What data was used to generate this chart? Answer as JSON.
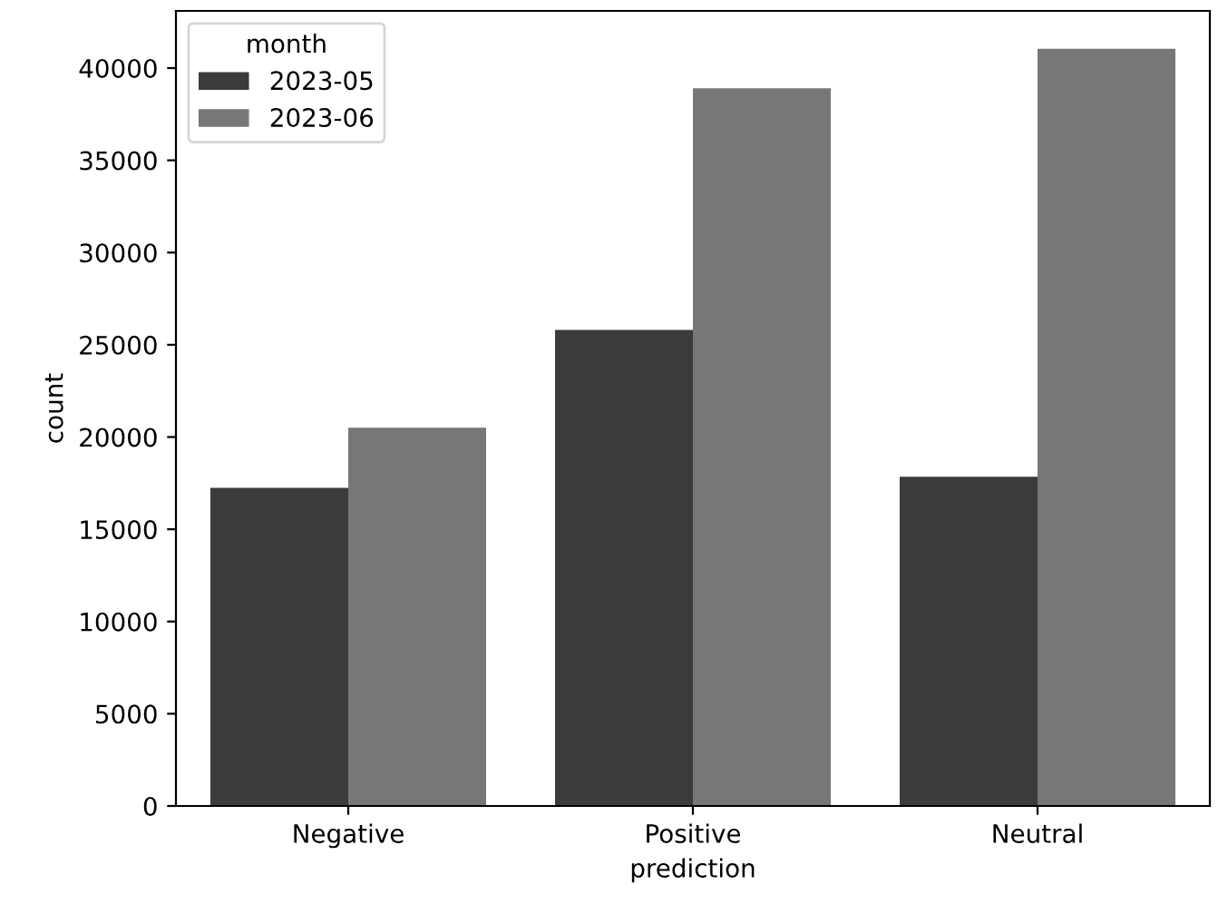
{
  "chart_data": {
    "type": "bar",
    "xlabel": "prediction",
    "ylabel": "count",
    "legend_title": "month",
    "categories": [
      "Negative",
      "Positive",
      "Neutral"
    ],
    "series": [
      {
        "name": "2023-05",
        "color": "#3b3b3b",
        "values": [
          17250,
          25800,
          17850
        ]
      },
      {
        "name": "2023-06",
        "color": "#777777",
        "values": [
          20500,
          38900,
          41050
        ]
      }
    ],
    "ylim": [
      0,
      43100
    ],
    "yticks": [
      0,
      5000,
      10000,
      15000,
      20000,
      25000,
      30000,
      35000,
      40000
    ],
    "grid": false,
    "legend": "top left"
  }
}
